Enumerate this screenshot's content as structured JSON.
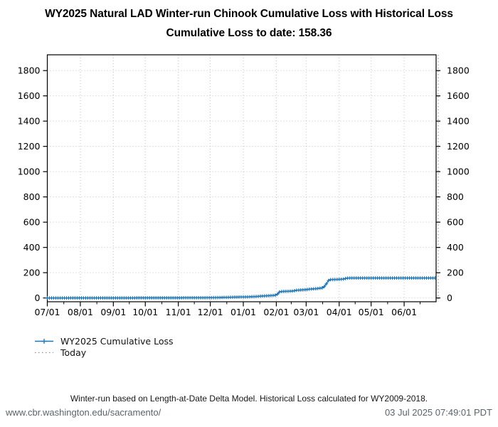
{
  "header": {
    "title_line1": "WY2025 Natural LAD Winter-run Chinook Cumulative Loss with Historical Loss",
    "title_line2": "Cumulative Loss to date: 158.36"
  },
  "legend": {
    "series_label": "WY2025 Cumulative Loss",
    "today_label": "Today"
  },
  "footer": {
    "note": "Winter-run based on Length-at-Date Delta Model. Historical Loss calculated for WY2009-2018.",
    "url": "www.cbr.washington.edu/sacramento/",
    "timestamp": "03 Jul 2025 07:49:01 PDT"
  },
  "chart_data": {
    "type": "line",
    "title": "WY2025 Natural LAD Winter-run Chinook Cumulative Loss with Historical Loss",
    "subtitle": "Cumulative Loss to date: 158.36",
    "cumulative_loss_to_date": 158.36,
    "xlabel": "",
    "ylabel": "",
    "grid": {
      "style": "dotted",
      "color": "#c4c4c4"
    },
    "x_axis": {
      "tick_labels": [
        "07/01",
        "08/01",
        "09/01",
        "10/01",
        "11/01",
        "12/01",
        "01/01",
        "02/01",
        "03/01",
        "04/01",
        "05/01",
        "06/01"
      ],
      "tick_day_offsets": [
        0,
        31,
        62,
        92,
        123,
        153,
        184,
        215,
        243,
        274,
        304,
        335
      ],
      "range_days": [
        0,
        365
      ]
    },
    "y_axis": {
      "ticks": [
        0,
        200,
        400,
        600,
        800,
        1000,
        1200,
        1400,
        1600,
        1800
      ],
      "ylim": [
        -30,
        1925
      ],
      "mirrored_right": true
    },
    "series": [
      {
        "name": "WY2025 Cumulative Loss",
        "color": "#1b75b7",
        "marker": "plus",
        "sample_interval_days": 2,
        "points_day_value": [
          [
            0,
            0
          ],
          [
            31,
            0.2
          ],
          [
            62,
            0.5
          ],
          [
            92,
            0.8
          ],
          [
            123,
            1.2
          ],
          [
            140,
            1.5
          ],
          [
            153,
            2
          ],
          [
            160,
            3
          ],
          [
            165,
            4
          ],
          [
            170,
            5
          ],
          [
            176,
            6.5
          ],
          [
            184,
            7.5
          ],
          [
            190,
            9
          ],
          [
            195,
            11
          ],
          [
            199,
            13
          ],
          [
            203,
            16
          ],
          [
            208,
            18
          ],
          [
            212,
            20
          ],
          [
            214,
            22
          ],
          [
            216,
            30
          ],
          [
            218,
            48
          ],
          [
            220,
            51
          ],
          [
            226,
            53
          ],
          [
            231,
            55
          ],
          [
            233,
            60
          ],
          [
            236,
            62
          ],
          [
            240,
            64
          ],
          [
            243,
            66
          ],
          [
            247,
            70
          ],
          [
            250,
            72
          ],
          [
            253,
            74
          ],
          [
            256,
            77
          ],
          [
            258,
            80
          ],
          [
            260,
            90
          ],
          [
            261,
            100
          ],
          [
            262,
            112
          ],
          [
            263,
            126
          ],
          [
            264,
            138
          ],
          [
            265,
            143
          ],
          [
            266,
            145
          ],
          [
            268,
            146
          ],
          [
            272,
            147
          ],
          [
            276,
            148
          ],
          [
            278,
            150
          ],
          [
            280,
            154
          ],
          [
            282,
            157
          ],
          [
            284,
            158.36
          ],
          [
            364,
            158.36
          ]
        ]
      }
    ],
    "today_line": {
      "label": "Today",
      "day_offset": 367,
      "color": "#8f8f8f",
      "style": "dotted"
    }
  }
}
